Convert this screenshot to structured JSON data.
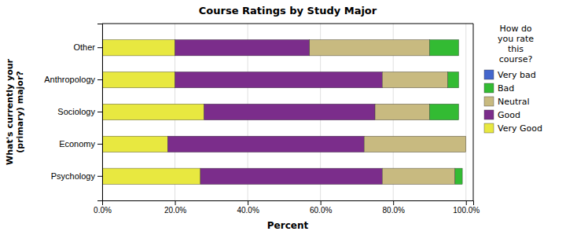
{
  "chart_data": {
    "type": "bar",
    "orientation": "horizontal",
    "stacked": true,
    "title": "Course Ratings by Study Major",
    "xlabel": "Percent",
    "ylabel": "What's currently your\n(primary) major?",
    "legend_title": "How do\nyou rate\nthis\ncourse?",
    "categories": [
      "Psychology",
      "Economy",
      "Sociology",
      "Anthropology",
      "Other"
    ],
    "series": [
      {
        "name": "Very Good",
        "color": "#E8E840",
        "values": [
          27,
          18,
          28,
          20,
          20
        ]
      },
      {
        "name": "Good",
        "color": "#7B2D8B",
        "values": [
          50,
          54,
          47,
          57,
          37
        ]
      },
      {
        "name": "Neutral",
        "color": "#C8BA80",
        "values": [
          20,
          28,
          15,
          18,
          33
        ]
      },
      {
        "name": "Bad",
        "color": "#33BB33",
        "values": [
          2,
          0,
          8,
          3,
          8
        ]
      },
      {
        "name": "Very bad",
        "color": "#4466CC",
        "values": [
          0,
          0,
          0,
          0,
          0
        ]
      }
    ],
    "xlim": [
      0,
      102
    ],
    "xticks": [
      {
        "value": 0,
        "label": "0.0%"
      },
      {
        "value": 20,
        "label": "20.0%"
      },
      {
        "value": 40,
        "label": "40.0%"
      },
      {
        "value": 60,
        "label": "60.0%"
      },
      {
        "value": 80,
        "label": "80.0%"
      },
      {
        "value": 100,
        "label": "100.0%"
      }
    ],
    "grid": true,
    "legend": "right"
  }
}
